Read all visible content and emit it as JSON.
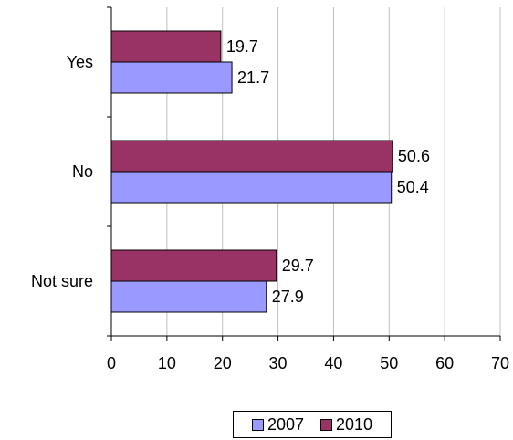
{
  "chart_data": {
    "type": "bar",
    "orientation": "horizontal",
    "categories": [
      "Yes",
      "No",
      "Not sure"
    ],
    "series": [
      {
        "name": "2007",
        "values": [
          21.7,
          50.4,
          27.9
        ],
        "color": "#9999FF"
      },
      {
        "name": "2010",
        "values": [
          19.7,
          50.6,
          29.7
        ],
        "color": "#993366"
      }
    ],
    "xlim": [
      0,
      70
    ],
    "xticks": [
      0,
      10,
      20,
      30,
      40,
      50,
      60,
      70
    ],
    "grid": true,
    "legend_position": "bottom",
    "data_labels": true
  }
}
